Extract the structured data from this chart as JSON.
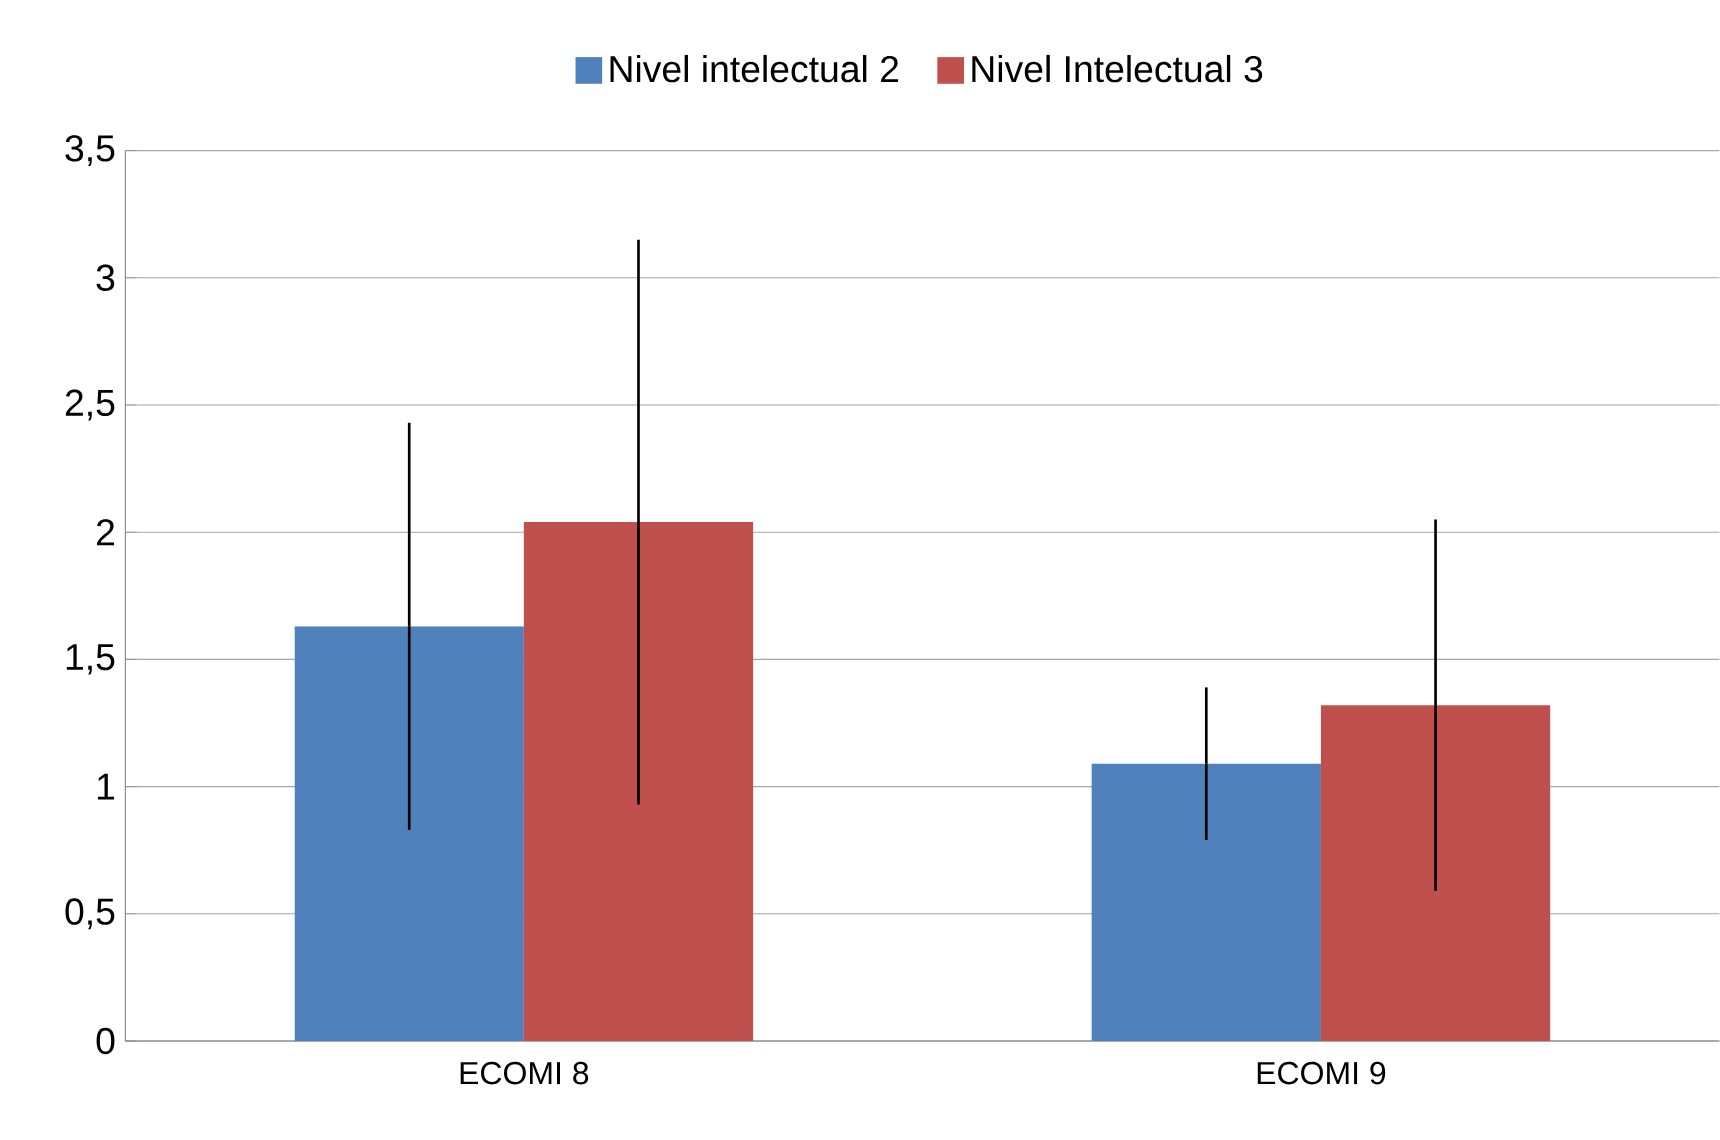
{
  "chart_data": {
    "type": "bar",
    "categories": [
      "ECOMI 8",
      "ECOMI 9"
    ],
    "series": [
      {
        "name": "Nivel intelectual 2",
        "color": "#4f81bd",
        "values": [
          1.63,
          1.09
        ],
        "errors": [
          0.8,
          0.3
        ]
      },
      {
        "name": "Nivel Intelectual 3",
        "color": "#c0504d",
        "values": [
          2.04,
          1.32
        ],
        "errors": [
          1.11,
          0.73
        ]
      }
    ],
    "ylim": [
      0,
      3.5
    ],
    "yticks": [
      0,
      {
        "value": 0.5,
        "label": "0,5"
      },
      1,
      {
        "value": 1.5,
        "label": "1,5"
      },
      2,
      {
        "value": 2.5,
        "label": "2,5"
      },
      3,
      {
        "value": 3.5,
        "label": "3,5"
      }
    ],
    "grid": "y",
    "legend": "top"
  }
}
